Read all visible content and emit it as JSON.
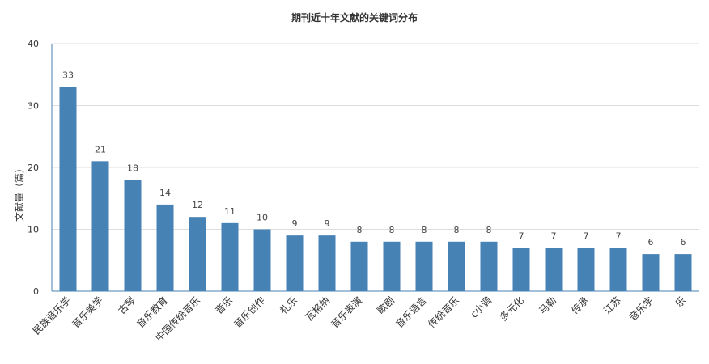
{
  "chart_data": {
    "type": "bar",
    "title": "期刊近十年文献的关键词分布",
    "xlabel": "",
    "ylabel": "文献量（篇）",
    "ylim": [
      0,
      40
    ],
    "yticks": [
      "0",
      "10",
      "20",
      "30",
      "40"
    ],
    "grid": true,
    "legend": "none",
    "bar_color": "#4682b4",
    "categories": [
      "民族音乐学",
      "音乐美学",
      "古琴",
      "音乐教育",
      "中国传统音乐",
      "音乐",
      "音乐创作",
      "礼乐",
      "瓦格纳",
      "音乐表演",
      "歌剧",
      "音乐语言",
      "传统音乐",
      "c小调",
      "多元化",
      "马勒",
      "传承",
      "江苏",
      "音乐学",
      "乐"
    ],
    "values": [
      33,
      21,
      18,
      14,
      12,
      11,
      10,
      9,
      9,
      8,
      8,
      8,
      8,
      8,
      7,
      7,
      7,
      7,
      6,
      6
    ]
  }
}
